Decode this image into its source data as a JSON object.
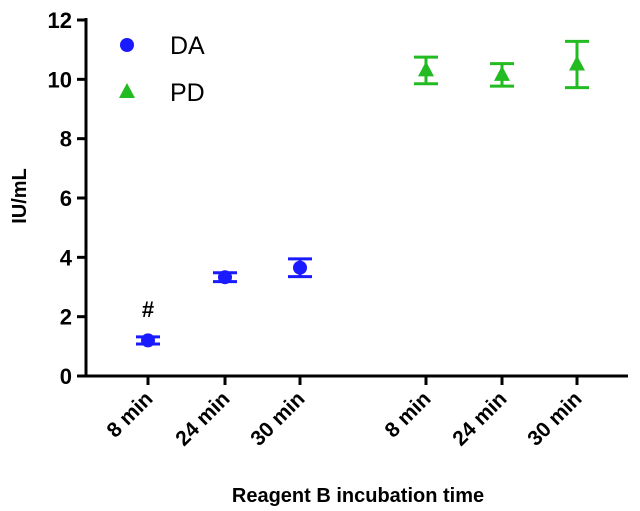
{
  "chart_data": {
    "type": "scatter",
    "xlabel": "Reagent B incubation time",
    "ylabel": "IU/mL",
    "ylim": [
      0,
      12
    ],
    "yticks": [
      "0",
      "2",
      "4",
      "6",
      "8",
      "10",
      "12"
    ],
    "categories": [
      "8 min",
      "24 min",
      "30 min",
      "8 min",
      "24 min",
      "30 min"
    ],
    "legend_position": "top-left",
    "grid": false,
    "series": [
      {
        "name": "DA",
        "marker": "circle",
        "color": "#1a1aff",
        "categories": [
          "8 min",
          "24 min",
          "30 min"
        ],
        "values": [
          1.2,
          3.33,
          3.65
        ],
        "errors": [
          0.12,
          0.15,
          0.3
        ]
      },
      {
        "name": "PD",
        "marker": "triangle",
        "color": "#22bb22",
        "categories": [
          "8 min",
          "24 min",
          "30 min"
        ],
        "values": [
          10.3,
          10.15,
          10.5
        ],
        "errors": [
          0.45,
          0.38,
          0.78
        ]
      }
    ],
    "annotations": [
      {
        "text": "#",
        "series": "DA",
        "category": "8 min"
      }
    ]
  }
}
